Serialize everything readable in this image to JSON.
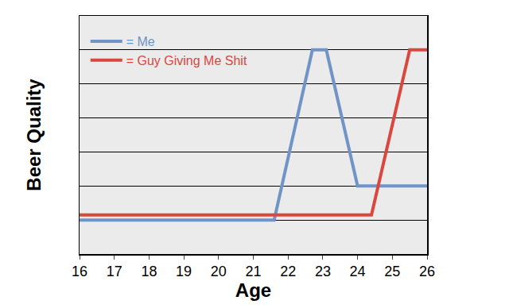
{
  "chart_data": {
    "type": "line",
    "x_label": "Age",
    "y_label": "Beer Quality",
    "series": [
      {
        "name": "= Me",
        "color": "#7094c6",
        "x": [
          16,
          21.6,
          22.7,
          23.1,
          24.0,
          26
        ],
        "values": [
          1,
          1,
          6,
          6,
          2,
          2
        ]
      },
      {
        "name": "= Guy Giving Me Shit",
        "color": "#d9473f",
        "x": [
          16,
          24.4,
          25.5,
          26
        ],
        "values": [
          1.15,
          1.15,
          6,
          6
        ]
      }
    ],
    "xlim": [
      16,
      26
    ],
    "xticks": [
      16,
      17,
      18,
      19,
      20,
      21,
      22,
      23,
      24,
      25,
      26
    ],
    "ylim": [
      0,
      7
    ],
    "yticks": [
      1,
      2,
      3,
      4,
      5,
      6
    ],
    "grid": true,
    "legend": "top left",
    "tick_labels": "x"
  }
}
